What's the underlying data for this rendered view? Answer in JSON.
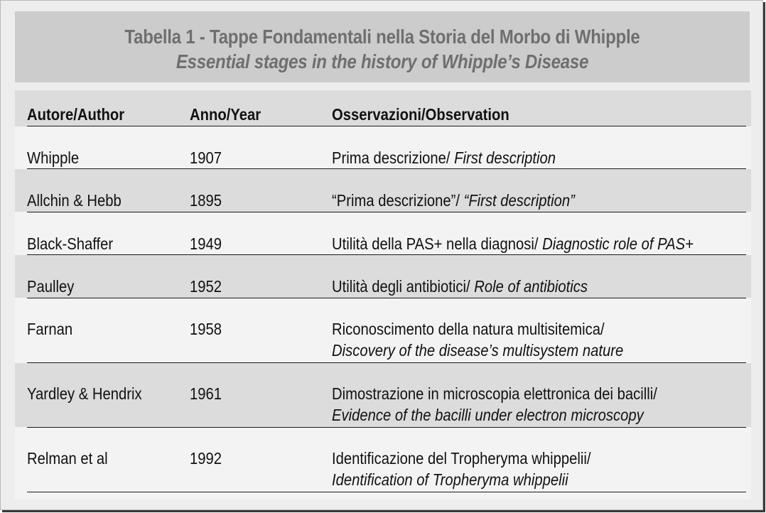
{
  "title": {
    "italian": "Tabella 1 - Tappe Fondamentali nella Storia del Morbo di Whipple",
    "english": "Essential stages in the history of Whipple’s Disease"
  },
  "table": {
    "headers": [
      "Autore/Author",
      "Anno/Year",
      "Osservazioni/Observation"
    ],
    "rows": [
      {
        "author": "Whipple",
        "year": "1907",
        "obs_it": "Prima descrizione/ ",
        "obs_en": "First description",
        "obs_line2": ""
      },
      {
        "author": "Allchin & Hebb",
        "year": "1895",
        "obs_it": "“Prima descrizione”/ ",
        "obs_en": "“First description”",
        "obs_line2": ""
      },
      {
        "author": "Black-Shaffer",
        "year": "1949",
        "obs_it": "Utilità della PAS+ nella diagnosi/ ",
        "obs_en": "Diagnostic role of PAS+",
        "obs_line2": ""
      },
      {
        "author": "Paulley",
        "year": "1952",
        "obs_it": "Utilità degli antibiotici/ ",
        "obs_en": "Role of antibiotics",
        "obs_line2": ""
      },
      {
        "author": "Farnan",
        "year": "1958",
        "obs_it": "Riconoscimento della natura multisitemica/",
        "obs_en": "",
        "obs_line2": "Discovery of the disease’s multisystem nature"
      },
      {
        "author": "Yardley & Hendrix",
        "year": "1961",
        "obs_it": "Dimostrazione in microscopia elettronica dei bacilli/",
        "obs_en": "",
        "obs_line2": "Evidence of the bacilli under electron microscopy"
      },
      {
        "author": "Relman et al",
        "year": "1992",
        "obs_it": "Identificazione del Tropheryma whippelii/",
        "obs_en": "",
        "obs_line2": "Identification of Tropheryma whippelii"
      }
    ]
  }
}
